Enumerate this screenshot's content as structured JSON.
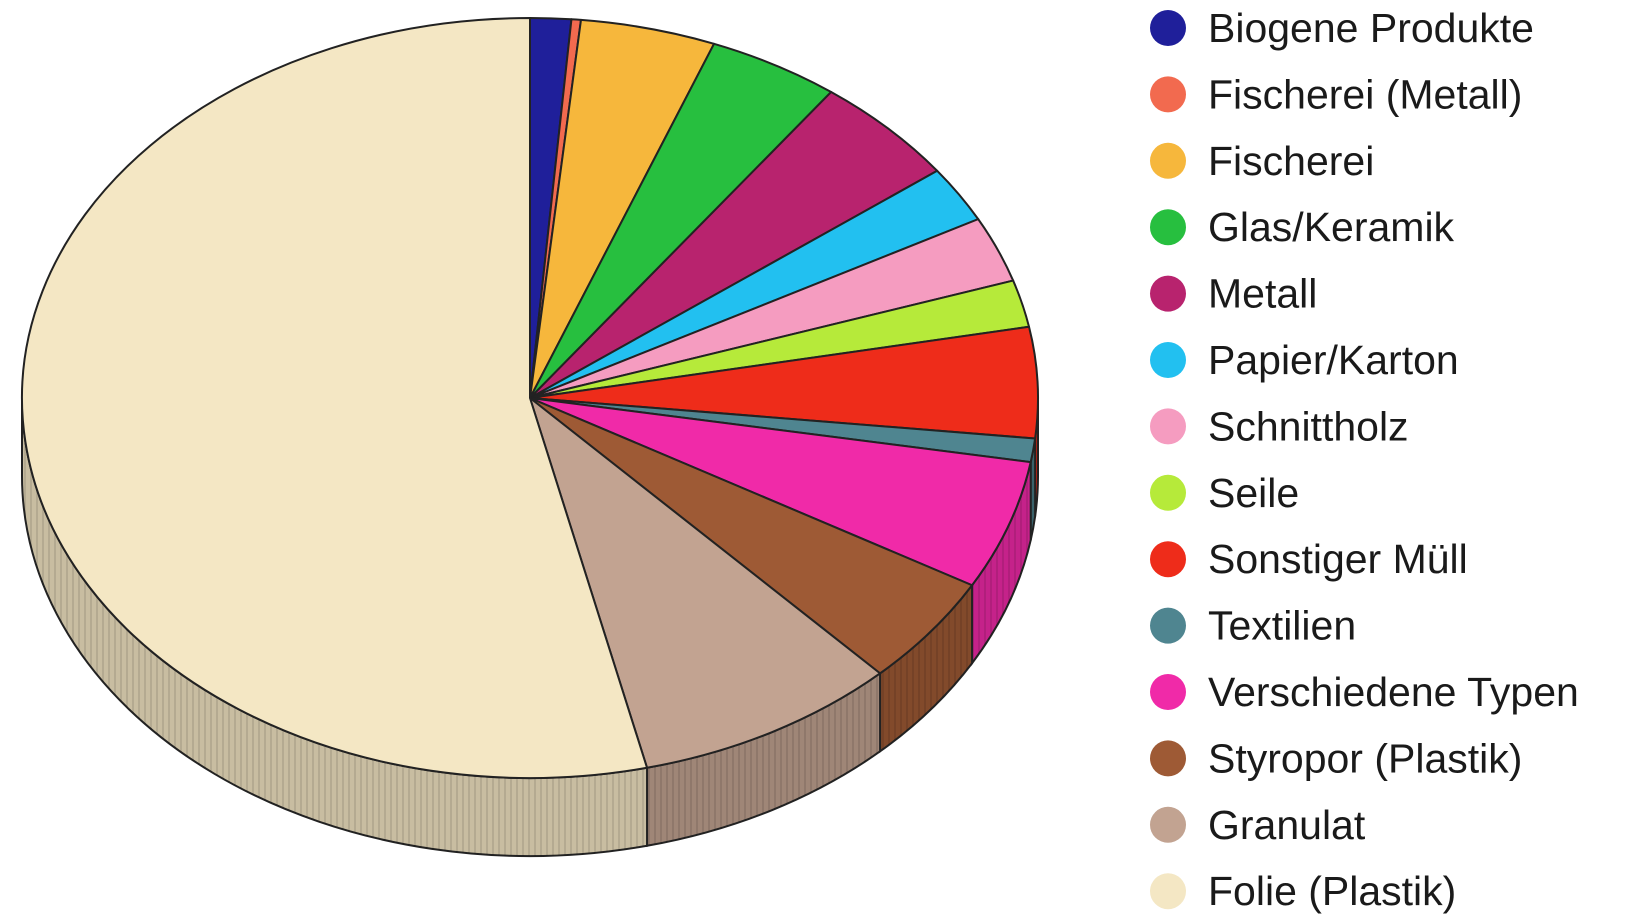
{
  "chart_data": {
    "type": "pie",
    "title": "",
    "legend_position": "right",
    "start_angle_deg": -90,
    "direction": "clockwise",
    "slices": [
      {
        "label": "Biogene Produkte",
        "value": 1.3,
        "color": "#1f1f9a"
      },
      {
        "label": "Fischerei (Metall)",
        "value": 0.3,
        "color": "#f26a4f"
      },
      {
        "label": "Fischerei",
        "value": 4.3,
        "color": "#f6b73c"
      },
      {
        "label": "Glas/Keramik",
        "value": 4.2,
        "color": "#27bf3f"
      },
      {
        "label": "Metall",
        "value": 4.7,
        "color": "#b8236e"
      },
      {
        "label": "Papier/Karton",
        "value": 2.4,
        "color": "#22c0f0"
      },
      {
        "label": "Schnittholz",
        "value": 2.8,
        "color": "#f59cc0"
      },
      {
        "label": "Seile",
        "value": 2.0,
        "color": "#b6ea3a"
      },
      {
        "label": "Sonstiger Müll",
        "value": 4.7,
        "color": "#ee2c1a"
      },
      {
        "label": "Textilien",
        "value": 1.0,
        "color": "#4f8590"
      },
      {
        "label": "Verschiedene Typen",
        "value": 5.5,
        "color": "#f02aa8"
      },
      {
        "label": "Styropor (Plastik)",
        "value": 4.7,
        "color": "#9e5a35"
      },
      {
        "label": "Granulat",
        "value": 8.4,
        "color": "#c2a391"
      },
      {
        "label": "Folie (Plastik)",
        "value": 53.7,
        "color": "#f4e7c4"
      }
    ]
  }
}
